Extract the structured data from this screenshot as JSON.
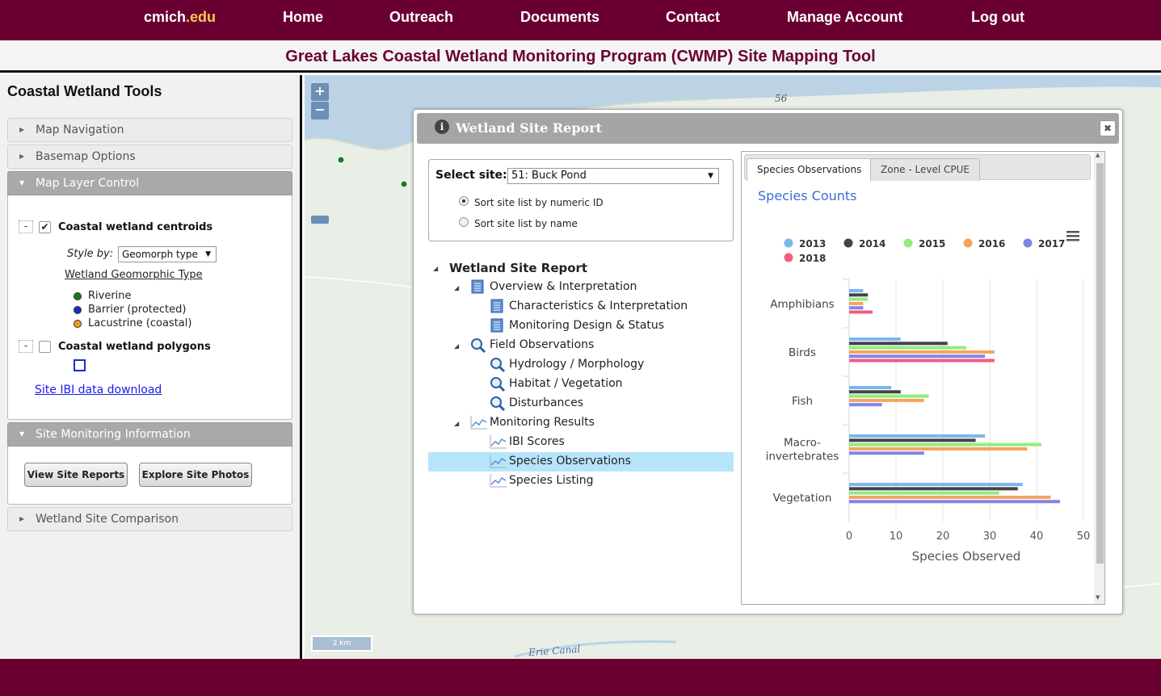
{
  "nav": {
    "brand_main": "cmich",
    "brand_ext": ".edu",
    "links": [
      "Home",
      "Outreach",
      "Documents",
      "Contact",
      "Manage Account",
      "Log out"
    ]
  },
  "page_title": "Great Lakes Coastal Wetland Monitoring Program (CWMP) Site Mapping Tool",
  "sidebar": {
    "title": "Coastal Wetland Tools",
    "sections": [
      "Map Navigation",
      "Basemap Options",
      "Map Layer Control",
      "Site Monitoring Information",
      "Wetland Site Comparison"
    ],
    "layers": {
      "centroids_label": "Coastal wetland centroids",
      "style_by_label": "Style by:",
      "style_by_value": "Geomorph type",
      "legend_title": "Wetland Geomorphic Type",
      "legend": [
        {
          "label": "Riverine",
          "color": "#1a7a1a"
        },
        {
          "label": "Barrier (protected)",
          "color": "#1a2fbf"
        },
        {
          "label": "Lacustrine (coastal)",
          "color": "#f29a1e"
        }
      ],
      "polygons_label": "Coastal wetland polygons",
      "ibi_link": "Site IBI data download"
    },
    "monitoring": {
      "view_reports": "View Site Reports",
      "explore_photos": "Explore Site Photos"
    }
  },
  "map": {
    "labels": {
      "road": "56",
      "canal": "Erie Canal",
      "scale": "2 km"
    },
    "zoom_in": "+",
    "zoom_out": "−"
  },
  "dialog": {
    "title": "Wetland Site Report",
    "select_site_label": "Select site:",
    "select_site_value": "51: Buck Pond",
    "sort_numeric": "Sort site list by numeric ID",
    "sort_name": "Sort site list by name",
    "tree": {
      "root": "Wetland Site Report",
      "overview": "Overview & Interpretation",
      "characteristics": "Characteristics & Interpretation",
      "design": "Monitoring Design & Status",
      "field": "Field Observations",
      "hydrology": "Hydrology / Morphology",
      "habitat": "Habitat / Vegetation",
      "disturbances": "Disturbances",
      "results": "Monitoring Results",
      "ibi": "IBI Scores",
      "species_obs": "Species Observations",
      "species_list": "Species Listing"
    },
    "tabs": [
      "Species Observations",
      "Zone - Level CPUE"
    ]
  },
  "chart_data": {
    "type": "bar",
    "orientation": "horizontal",
    "title": "Species Counts",
    "xlabel": "Species Observed",
    "xlim": [
      0,
      50
    ],
    "xticks": [
      "0",
      "10",
      "20",
      "30",
      "40",
      "50"
    ],
    "categories": [
      "Amphibians",
      "Birds",
      "Fish",
      "Macro-invertebrates",
      "Vegetation"
    ],
    "category_lines": [
      [
        "Amphibians"
      ],
      [
        "Birds"
      ],
      [
        "Fish"
      ],
      [
        "Macro-",
        "invertebrates"
      ],
      [
        "Vegetation"
      ]
    ],
    "legend_position": "top",
    "series": [
      {
        "name": "2013",
        "color": "#7cb5ec",
        "values": [
          3,
          11,
          9,
          29,
          37
        ]
      },
      {
        "name": "2014",
        "color": "#434348",
        "values": [
          4,
          21,
          11,
          27,
          36
        ]
      },
      {
        "name": "2015",
        "color": "#90ed7d",
        "values": [
          4,
          25,
          17,
          41,
          32
        ]
      },
      {
        "name": "2016",
        "color": "#f7a35c",
        "values": [
          3,
          31,
          16,
          38,
          43
        ]
      },
      {
        "name": "2017",
        "color": "#8085e9",
        "values": [
          3,
          29,
          7,
          16,
          45
        ]
      },
      {
        "name": "2018",
        "color": "#f15c80",
        "values": [
          5,
          31,
          null,
          null,
          null
        ]
      }
    ]
  }
}
